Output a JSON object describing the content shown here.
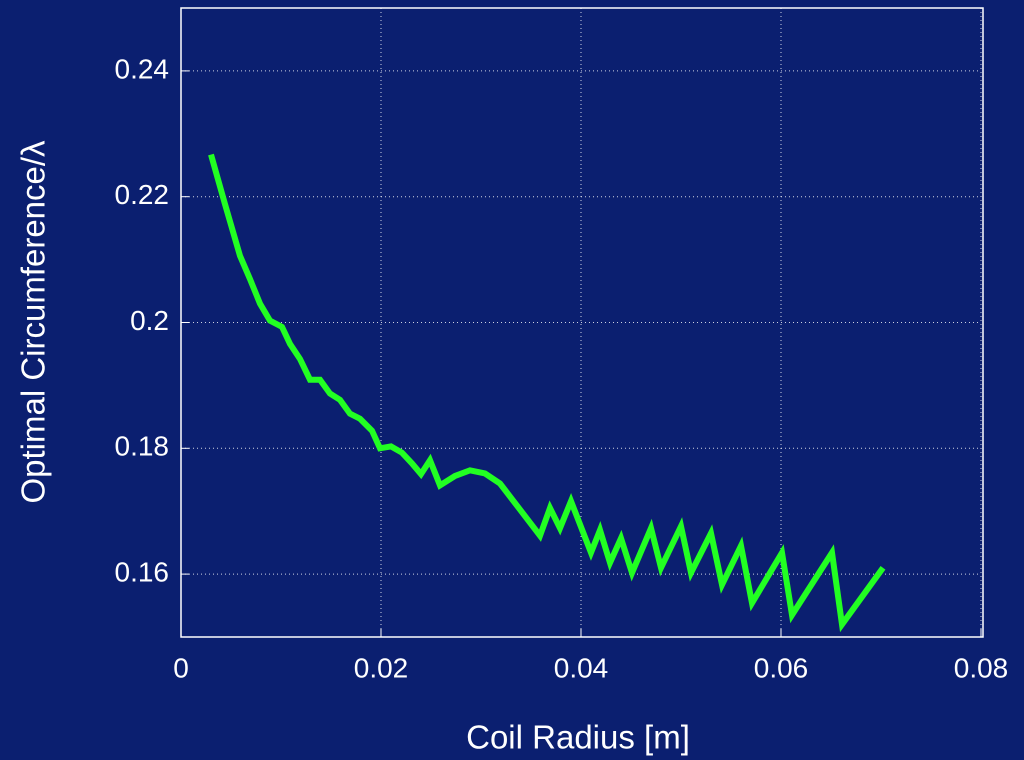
{
  "chart_data": {
    "type": "line",
    "xlabel": "Coil Radius [m]",
    "ylabel": "Optimal Circumference/λ",
    "xlim": [
      0,
      0.08
    ],
    "xticks": [
      0,
      0.02,
      0.04,
      0.06,
      0.08
    ],
    "ylim": [
      0.15,
      0.25
    ],
    "yticks": [
      0.16,
      0.18,
      0.2,
      0.22,
      0.24
    ],
    "grid": true,
    "series": [
      {
        "color": "#22ff22",
        "x": [
          0.003,
          0.0044,
          0.0059,
          0.0069,
          0.0079,
          0.0089,
          0.0101,
          0.0109,
          0.0119,
          0.0129,
          0.0139,
          0.0149,
          0.0159,
          0.0169,
          0.0179,
          0.0191,
          0.0199,
          0.021,
          0.0221,
          0.0231,
          0.024,
          0.0249,
          0.0259,
          0.0274,
          0.0289,
          0.0304,
          0.0319,
          0.0334,
          0.0359,
          0.0369,
          0.0379,
          0.039,
          0.041,
          0.0419,
          0.0429,
          0.044,
          0.0451,
          0.047,
          0.048,
          0.05,
          0.051,
          0.053,
          0.0541,
          0.056,
          0.0571,
          0.0601,
          0.0611,
          0.0651,
          0.0661,
          0.0702
        ],
        "values": [
          0.2267,
          0.2188,
          0.2106,
          0.2069,
          0.203,
          0.2003,
          0.1993,
          0.1966,
          0.1942,
          0.1909,
          0.1909,
          0.1887,
          0.1877,
          0.1855,
          0.1847,
          0.1828,
          0.18,
          0.1803,
          0.1793,
          0.1776,
          0.1759,
          0.1781,
          0.1741,
          0.1756,
          0.1765,
          0.176,
          0.1744,
          0.1713,
          0.1661,
          0.1705,
          0.1673,
          0.1716,
          0.1634,
          0.167,
          0.1618,
          0.1657,
          0.1602,
          0.1673,
          0.161,
          0.1676,
          0.1602,
          0.1665,
          0.1583,
          0.1645,
          0.1554,
          0.1634,
          0.1535,
          0.1634,
          0.152,
          0.161
        ]
      }
    ]
  }
}
